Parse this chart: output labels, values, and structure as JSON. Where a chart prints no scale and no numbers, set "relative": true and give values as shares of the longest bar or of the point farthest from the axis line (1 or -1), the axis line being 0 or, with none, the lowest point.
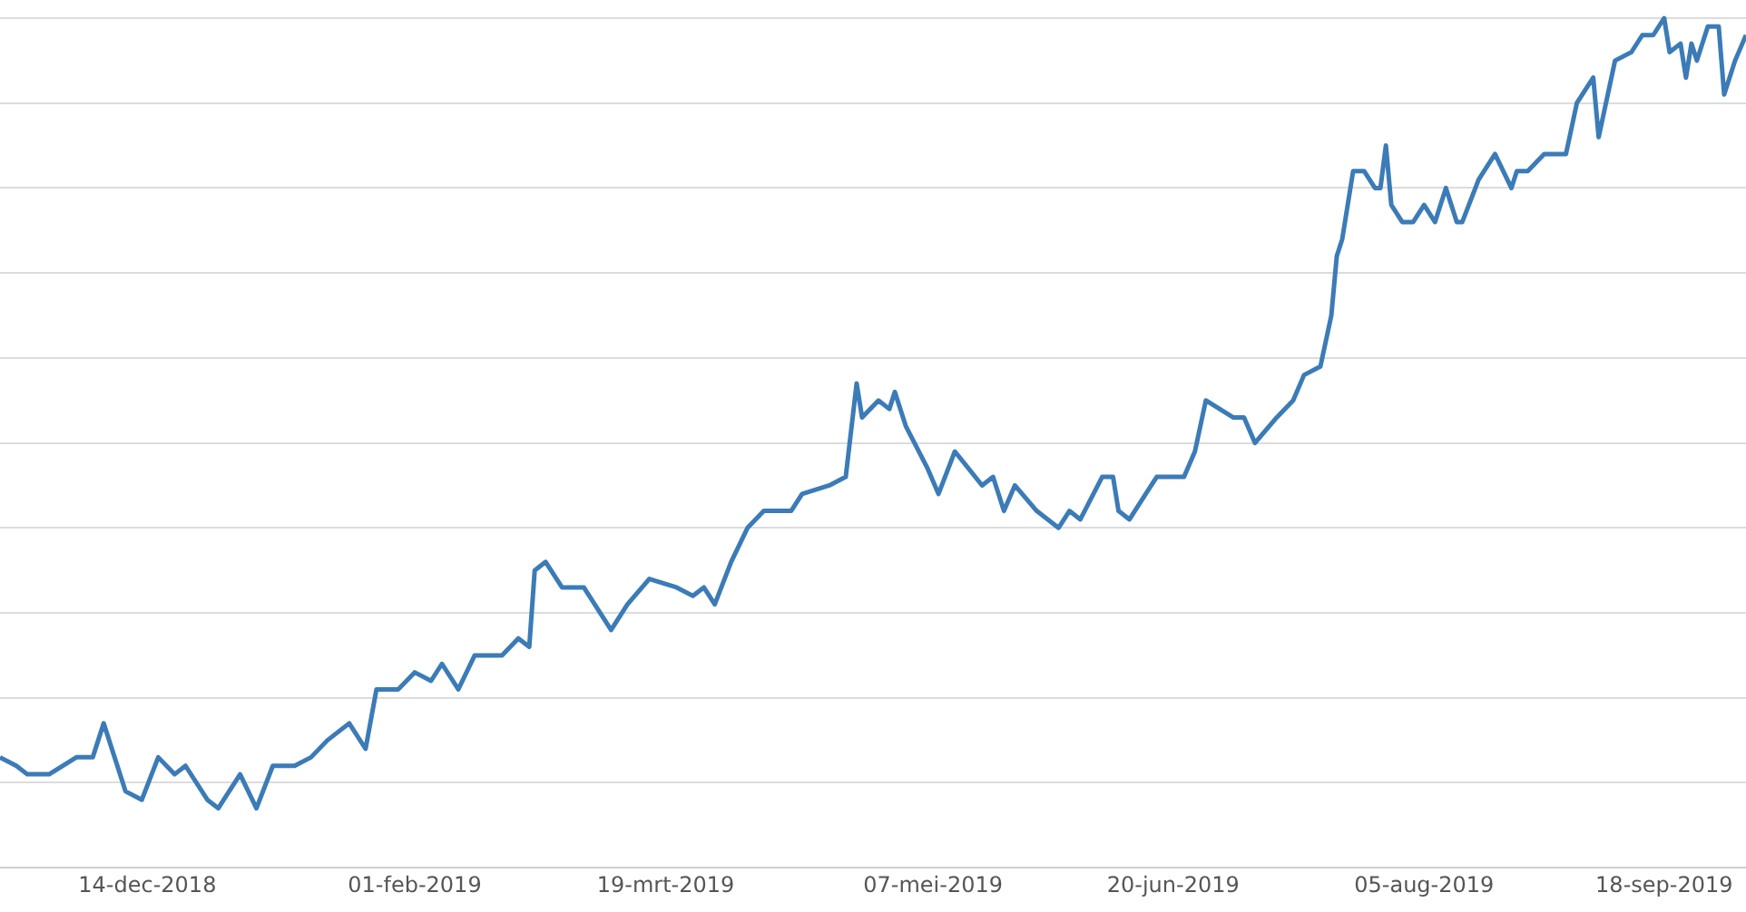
{
  "chart_data": {
    "type": "line",
    "relative": true,
    "grid": "y",
    "legend": false,
    "marker": "none",
    "line_style": "solid",
    "xlim": [
      "2018-11-17",
      "2019-10-03"
    ],
    "xticks": [
      {
        "value": "2018-12-14",
        "label": "14-dec-2018"
      },
      {
        "value": "2019-02-01",
        "label": "01-feb-2019"
      },
      {
        "value": "2019-03-19",
        "label": "19-mrt-2019"
      },
      {
        "value": "2019-05-07",
        "label": "07-mei-2019"
      },
      {
        "value": "2019-06-20",
        "label": "20-jun-2019"
      },
      {
        "value": "2019-08-05",
        "label": "05-aug-2019"
      },
      {
        "value": "2019-09-18",
        "label": "18-sep-2019"
      }
    ],
    "x": [
      "2018-11-17",
      "2018-11-20",
      "2018-11-22",
      "2018-11-26",
      "2018-12-01",
      "2018-12-04",
      "2018-12-06",
      "2018-12-10",
      "2018-12-13",
      "2018-12-16",
      "2018-12-19",
      "2018-12-21",
      "2018-12-25",
      "2018-12-27",
      "2018-12-31",
      "2019-01-03",
      "2019-01-06",
      "2019-01-10",
      "2019-01-13",
      "2019-01-16",
      "2019-01-20",
      "2019-01-23",
      "2019-01-25",
      "2019-01-29",
      "2019-02-01",
      "2019-02-04",
      "2019-02-06",
      "2019-02-09",
      "2019-02-12",
      "2019-02-17",
      "2019-02-20",
      "2019-02-22",
      "2019-02-23",
      "2019-02-25",
      "2019-02-28",
      "2019-03-04",
      "2019-03-09",
      "2019-03-12",
      "2019-03-16",
      "2019-03-21",
      "2019-03-24",
      "2019-03-26",
      "2019-03-28",
      "2019-03-31",
      "2019-04-03",
      "2019-04-06",
      "2019-04-11",
      "2019-04-13",
      "2019-04-18",
      "2019-04-21",
      "2019-04-23",
      "2019-04-24",
      "2019-04-27",
      "2019-04-29",
      "2019-04-30",
      "2019-05-02",
      "2019-05-06",
      "2019-05-08",
      "2019-05-11",
      "2019-05-16",
      "2019-05-18",
      "2019-05-20",
      "2019-05-22",
      "2019-05-26",
      "2019-05-30",
      "2019-06-01",
      "2019-06-03",
      "2019-06-07",
      "2019-06-09",
      "2019-06-10",
      "2019-06-12",
      "2019-06-14",
      "2019-06-17",
      "2019-06-18",
      "2019-06-22",
      "2019-06-24",
      "2019-06-26",
      "2019-07-01",
      "2019-07-03",
      "2019-07-05",
      "2019-07-09",
      "2019-07-12",
      "2019-07-14",
      "2019-07-17",
      "2019-07-19",
      "2019-07-20",
      "2019-07-21",
      "2019-07-23",
      "2019-07-25",
      "2019-07-27",
      "2019-07-28",
      "2019-07-29",
      "2019-07-30",
      "2019-08-01",
      "2019-08-03",
      "2019-08-05",
      "2019-08-07",
      "2019-08-09",
      "2019-08-11",
      "2019-08-12",
      "2019-08-15",
      "2019-08-18",
      "2019-08-21",
      "2019-08-22",
      "2019-08-24",
      "2019-08-27",
      "2019-08-31",
      "2019-09-02",
      "2019-09-05",
      "2019-09-06",
      "2019-09-09",
      "2019-09-12",
      "2019-09-14",
      "2019-09-16",
      "2019-09-18",
      "2019-09-19",
      "2019-09-21",
      "2019-09-22",
      "2019-09-23",
      "2019-09-24",
      "2019-09-26",
      "2019-09-28",
      "2019-09-29",
      "2019-10-01",
      "2019-10-03"
    ],
    "series": [
      {
        "color": "#3b7bb8",
        "values": [
          0.13,
          0.12,
          0.11,
          0.11,
          0.13,
          0.13,
          0.17,
          0.09,
          0.08,
          0.13,
          0.11,
          0.12,
          0.08,
          0.07,
          0.11,
          0.07,
          0.12,
          0.12,
          0.13,
          0.15,
          0.17,
          0.14,
          0.21,
          0.21,
          0.23,
          0.22,
          0.24,
          0.21,
          0.25,
          0.25,
          0.27,
          0.26,
          0.35,
          0.36,
          0.33,
          0.33,
          0.28,
          0.31,
          0.34,
          0.33,
          0.32,
          0.33,
          0.31,
          0.36,
          0.4,
          0.42,
          0.42,
          0.44,
          0.45,
          0.46,
          0.57,
          0.53,
          0.55,
          0.54,
          0.56,
          0.52,
          0.47,
          0.44,
          0.49,
          0.45,
          0.46,
          0.42,
          0.45,
          0.42,
          0.4,
          0.42,
          0.41,
          0.46,
          0.46,
          0.42,
          0.41,
          0.43,
          0.46,
          0.46,
          0.46,
          0.49,
          0.55,
          0.53,
          0.53,
          0.5,
          0.53,
          0.55,
          0.58,
          0.59,
          0.65,
          0.72,
          0.74,
          0.82,
          0.82,
          0.8,
          0.8,
          0.85,
          0.78,
          0.76,
          0.76,
          0.78,
          0.76,
          0.8,
          0.76,
          0.76,
          0.81,
          0.84,
          0.8,
          0.82,
          0.82,
          0.84,
          0.84,
          0.9,
          0.93,
          0.86,
          0.95,
          0.96,
          0.98,
          0.98,
          1.0,
          0.96,
          0.97,
          0.93,
          0.97,
          0.95,
          0.99,
          0.99,
          0.91,
          0.95,
          0.98
        ]
      }
    ]
  }
}
